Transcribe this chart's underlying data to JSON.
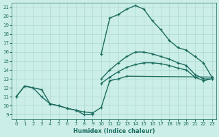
{
  "xlabel": "Humidex (Indice chaleur)",
  "xlim_min": -0.5,
  "xlim_max": 23.5,
  "ylim_min": 8.5,
  "ylim_max": 21.5,
  "xticks": [
    0,
    1,
    2,
    3,
    4,
    5,
    6,
    7,
    8,
    9,
    10,
    11,
    12,
    13,
    14,
    15,
    16,
    17,
    18,
    19,
    20,
    21,
    22,
    23
  ],
  "yticks": [
    9,
    10,
    11,
    12,
    13,
    14,
    15,
    16,
    17,
    18,
    19,
    20,
    21
  ],
  "bg_color": "#cceee8",
  "grid_color": "#aad8d2",
  "line_color": "#1a6b5e",
  "line_width": 1.0,
  "marker_size": 3.5,
  "curve_upper": {
    "x": [
      10,
      11,
      12,
      13,
      14,
      15,
      16,
      17,
      18,
      19,
      20,
      21,
      22,
      23
    ],
    "y": [
      15.8,
      19.8,
      20.2,
      20.8,
      21.2,
      20.8,
      19.5,
      18.5,
      17.3,
      16.5,
      16.2,
      15.5,
      14.8,
      13.2
    ]
  },
  "curve_mid_upper": {
    "x": [
      10,
      11,
      12,
      13,
      14,
      15,
      16,
      17,
      18,
      19,
      20,
      21,
      22,
      23
    ],
    "y": [
      13.0,
      14.0,
      14.8,
      15.5,
      16.0,
      16.0,
      15.8,
      15.5,
      15.2,
      14.8,
      14.5,
      13.5,
      13.0,
      13.0
    ]
  },
  "curve_mid_lower": {
    "x": [
      10,
      11,
      12,
      13,
      14,
      15,
      16,
      17,
      18,
      19,
      20,
      21,
      22,
      23
    ],
    "y": [
      12.5,
      13.2,
      13.8,
      14.3,
      14.6,
      14.8,
      14.8,
      14.7,
      14.5,
      14.2,
      14.0,
      13.2,
      12.8,
      13.0
    ]
  },
  "curve_lower_right": {
    "x": [
      0,
      1,
      2,
      3,
      4,
      5,
      6,
      7,
      8,
      9,
      10,
      11,
      12,
      13,
      23
    ],
    "y": [
      11.0,
      12.2,
      12.0,
      11.8,
      10.2,
      10.0,
      9.7,
      9.5,
      9.3,
      9.2,
      9.8,
      12.8,
      13.0,
      13.3,
      13.2
    ]
  },
  "curve_bottom": {
    "x": [
      0,
      1,
      2,
      3,
      4,
      5,
      6,
      7,
      8,
      9
    ],
    "y": [
      11.0,
      12.2,
      12.0,
      11.0,
      10.2,
      10.0,
      9.7,
      9.5,
      9.0,
      9.0
    ]
  }
}
